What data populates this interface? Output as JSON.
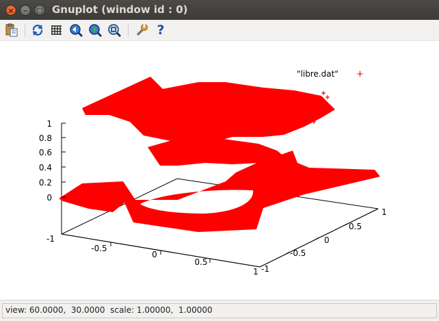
{
  "window": {
    "title": "Gnuplot (window id : 0)",
    "close_glyph": "×",
    "minimize_glyph": "–",
    "maximize_glyph": "□"
  },
  "toolbar": {
    "icons": [
      "clipboard-icon",
      "refresh-icon",
      "grid-icon",
      "zoom-previous-icon",
      "zoom-next-icon",
      "autoscale-icon",
      "settings-icon",
      "help-icon"
    ],
    "help_glyph": "?"
  },
  "plot": {
    "legend_label": "\"libre.dat\"",
    "legend_marker": "+",
    "point_color": "#ff0000",
    "z_ticks": [
      "1",
      "0.8",
      "0.6",
      "0.4",
      "0.2",
      "0",
      "-1"
    ],
    "x_ticks": [
      "-0.5",
      "0",
      "0.5",
      "1"
    ],
    "y_ticks": [
      "1",
      "0.5",
      "0",
      "-0.5",
      "-1"
    ]
  },
  "status": {
    "text": "view: 60.0000,  30.0000  scale: 1.00000,  1.00000"
  }
}
